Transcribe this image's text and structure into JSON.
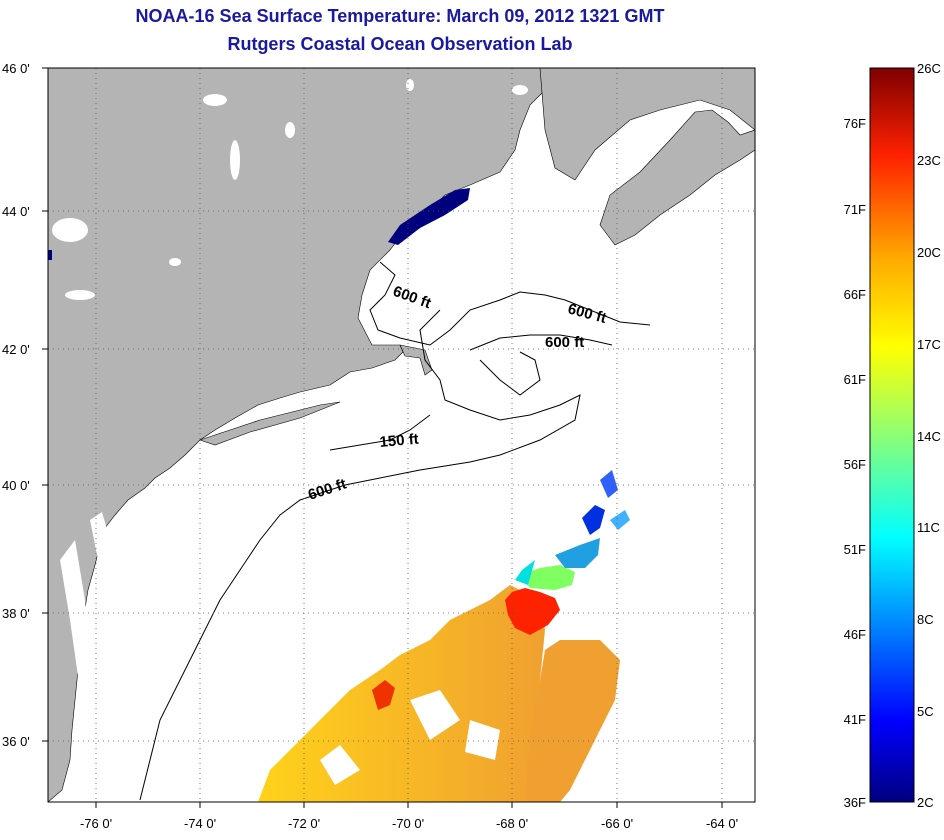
{
  "title": {
    "line1": "NOAA-16 Sea Surface Temperature:  March 09, 2012 1321 GMT",
    "line2": "Rutgers Coastal Ocean Observation Lab"
  },
  "axes": {
    "lat_labels": [
      "46 0'",
      "44 0'",
      "42 0'",
      "40 0'",
      "38 0'",
      "36 0'"
    ],
    "lon_labels": [
      "-76 0'",
      "-74 0'",
      "-72 0'",
      "-70 0'",
      "-68 0'",
      "-66 0'",
      "-64 0'"
    ]
  },
  "depth_labels": [
    "600 ft",
    "600 ft",
    "600 ft",
    "150 ft",
    "600 ft"
  ],
  "colorbar": {
    "fahrenheit": [
      "76F",
      "71F",
      "66F",
      "61F",
      "56F",
      "51F",
      "46F",
      "41F",
      "36F"
    ],
    "celsius": [
      "26C",
      "23C",
      "20C",
      "17C",
      "14C",
      "11C",
      "8C",
      "5C",
      "2C"
    ]
  },
  "colors": {
    "land": "#b4b4b4",
    "title": "#1a1aa0",
    "cold": "#00007f",
    "warm": "#ff3300"
  }
}
